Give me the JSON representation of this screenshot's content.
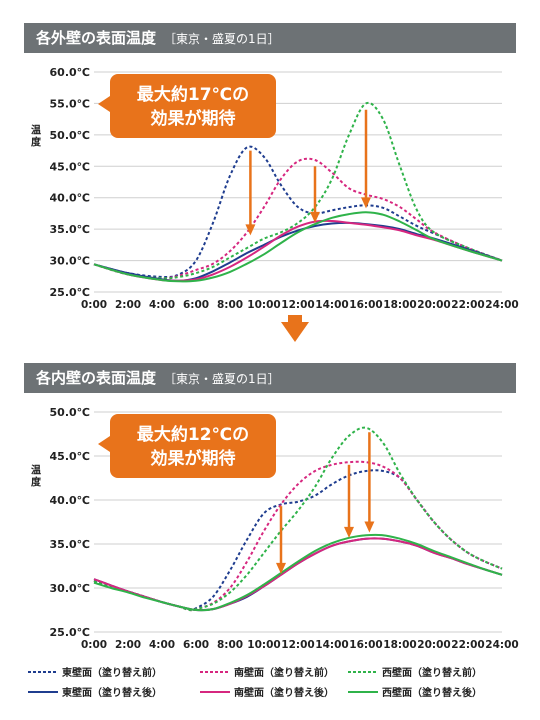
{
  "colors": {
    "east": "#1f3d8f",
    "south": "#d6277f",
    "west": "#2fb34a",
    "arrow": "#e8731b",
    "header_bg": "#6d7275",
    "grid": "#cfcfcf"
  },
  "flow_arrow_icon": "down-arrow-icon",
  "legend": {
    "east_before": "東壁面（塗り替え前）",
    "south_before": "南壁面（塗り替え前）",
    "west_before": "西壁面（塗り替え前）",
    "east_after": "東壁面（塗り替え後）",
    "south_after": "南壁面（塗り替え後）",
    "west_after": "西壁面（塗り替え後）"
  },
  "chart_data": [
    {
      "type": "line",
      "title": "各外壁の表面温度",
      "subtitle": "［東京・盛夏の1日］",
      "ylabel": "温度",
      "callout": [
        "最大約17℃の",
        "効果が期待"
      ],
      "x_ticks": [
        "0:00",
        "2:00",
        "4:00",
        "6:00",
        "8:00",
        "10:00",
        "12:00",
        "14:00",
        "16:00",
        "18:00",
        "20:00",
        "22:00",
        "24:00"
      ],
      "y_ticks": [
        "25.0℃",
        "30.0℃",
        "35.0℃",
        "40.0℃",
        "45.0℃",
        "50.0℃",
        "55.0℃",
        "60.0℃"
      ],
      "ylim": [
        25,
        60
      ],
      "xlim": [
        0,
        24
      ],
      "grid": true,
      "series": [
        {
          "name": "東壁面（塗り替え前）",
          "color": "east",
          "dashed": true,
          "x": [
            0,
            2,
            4,
            5,
            6,
            7,
            8,
            9,
            10,
            11,
            12,
            13,
            14,
            15,
            16,
            17,
            18,
            19,
            20,
            22,
            24
          ],
          "y": [
            29.4,
            28.0,
            27.4,
            27.8,
            30.0,
            36.0,
            43.5,
            48.0,
            46.5,
            42.0,
            38.5,
            37.5,
            38.0,
            38.5,
            38.8,
            38.4,
            37.0,
            35.5,
            34.3,
            32.0,
            30.0
          ]
        },
        {
          "name": "南壁面（塗り替え前）",
          "color": "south",
          "dashed": true,
          "x": [
            0,
            2,
            4,
            5,
            6,
            7,
            8,
            9,
            10,
            11,
            12,
            13,
            14,
            15,
            16,
            17,
            18,
            19,
            20,
            22,
            24
          ],
          "y": [
            29.4,
            27.8,
            27.2,
            27.6,
            28.5,
            29.5,
            31.5,
            34.5,
            38.5,
            43.0,
            45.8,
            46.0,
            44.0,
            41.5,
            40.5,
            39.8,
            38.5,
            36.5,
            34.5,
            32.0,
            30.0
          ]
        },
        {
          "name": "西壁面（塗り替え前）",
          "color": "west",
          "dashed": true,
          "x": [
            0,
            2,
            4,
            5,
            6,
            7,
            8,
            9,
            10,
            11,
            12,
            13,
            14,
            15,
            16,
            17,
            18,
            19,
            20,
            22,
            24
          ],
          "y": [
            29.4,
            27.8,
            27.2,
            27.4,
            28.0,
            29.0,
            30.5,
            32.0,
            33.5,
            34.5,
            36.0,
            38.5,
            43.0,
            50.0,
            55.0,
            52.5,
            45.0,
            38.0,
            34.5,
            32.0,
            30.0
          ]
        },
        {
          "name": "東壁面（塗り替え後）",
          "color": "east",
          "dashed": false,
          "x": [
            0,
            2,
            4,
            5,
            6,
            7,
            8,
            9,
            10,
            11,
            12,
            13,
            14,
            15,
            16,
            17,
            18,
            19,
            20,
            22,
            24
          ],
          "y": [
            29.4,
            28.0,
            27.0,
            26.8,
            27.2,
            28.3,
            29.7,
            31.2,
            32.5,
            33.8,
            34.8,
            35.5,
            35.9,
            36.0,
            35.8,
            35.5,
            35.0,
            34.2,
            33.5,
            31.8,
            30.0
          ]
        },
        {
          "name": "南壁面（塗り替え後）",
          "color": "south",
          "dashed": false,
          "x": [
            0,
            2,
            4,
            5,
            6,
            7,
            8,
            9,
            10,
            11,
            12,
            13,
            14,
            15,
            16,
            17,
            18,
            19,
            20,
            22,
            24
          ],
          "y": [
            29.4,
            27.8,
            26.9,
            26.8,
            27.0,
            27.8,
            29.0,
            30.5,
            32.2,
            34.0,
            35.4,
            36.2,
            36.3,
            36.0,
            35.7,
            35.3,
            34.8,
            34.0,
            33.3,
            31.6,
            30.0
          ]
        },
        {
          "name": "西壁面（塗り替え後）",
          "color": "west",
          "dashed": false,
          "x": [
            0,
            2,
            4,
            5,
            6,
            7,
            8,
            9,
            10,
            11,
            12,
            13,
            14,
            15,
            16,
            17,
            18,
            19,
            20,
            22,
            24
          ],
          "y": [
            29.4,
            27.8,
            26.9,
            26.7,
            26.8,
            27.3,
            28.2,
            29.5,
            31.0,
            32.8,
            34.5,
            35.8,
            36.8,
            37.4,
            37.7,
            37.3,
            36.2,
            34.8,
            33.4,
            31.6,
            30.0
          ]
        }
      ],
      "annotation_arrows": [
        {
          "x": 9.2,
          "y_from": 47.5,
          "y_to": 34.0
        },
        {
          "x": 13.0,
          "y_from": 45.0,
          "y_to": 36.0
        },
        {
          "x": 16.0,
          "y_from": 54.0,
          "y_to": 38.3
        }
      ]
    },
    {
      "type": "line",
      "title": "各内壁の表面温度",
      "subtitle": "［東京・盛夏の1日］",
      "ylabel": "温度",
      "callout": [
        "最大約12℃の",
        "効果が期待"
      ],
      "x_ticks": [
        "0:00",
        "2:00",
        "4:00",
        "6:00",
        "8:00",
        "10:00",
        "12:00",
        "14:00",
        "16:00",
        "18:00",
        "20:00",
        "22:00",
        "24:00"
      ],
      "y_ticks": [
        "25.0℃",
        "30.0℃",
        "35.0℃",
        "40.0℃",
        "45.0℃",
        "50.0℃"
      ],
      "ylim": [
        25,
        50
      ],
      "xlim": [
        0,
        24
      ],
      "grid": true,
      "series": [
        {
          "name": "東壁面（塗り替え前）",
          "color": "east",
          "dashed": true,
          "x": [
            0,
            1,
            2,
            3,
            4,
            5,
            5.6,
            6,
            7,
            8,
            9,
            10,
            11,
            12,
            13,
            14,
            15,
            16,
            17,
            18,
            19,
            20,
            21,
            22,
            23,
            24
          ],
          "y": [
            30.8,
            30.2,
            29.6,
            29.0,
            28.4,
            27.9,
            27.6,
            27.7,
            29.0,
            32.0,
            35.5,
            38.5,
            39.5,
            39.8,
            40.5,
            41.8,
            42.8,
            43.3,
            43.3,
            42.5,
            40.0,
            37.5,
            35.5,
            34.0,
            33.0,
            32.2
          ]
        },
        {
          "name": "南壁面（塗り替え前）",
          "color": "south",
          "dashed": true,
          "x": [
            0,
            1,
            2,
            3,
            4,
            5,
            5.6,
            6,
            7,
            8,
            9,
            10,
            11,
            12,
            13,
            14,
            15,
            16,
            17,
            18,
            19,
            20,
            21,
            22,
            23,
            24
          ],
          "y": [
            30.8,
            30.2,
            29.6,
            29.0,
            28.4,
            27.9,
            27.5,
            27.6,
            28.3,
            30.0,
            33.0,
            36.5,
            39.5,
            41.8,
            43.3,
            44.0,
            44.3,
            44.3,
            43.8,
            42.5,
            40.0,
            37.5,
            35.5,
            34.0,
            33.0,
            32.2
          ]
        },
        {
          "name": "西壁面（塗り替え前）",
          "color": "west",
          "dashed": true,
          "x": [
            0,
            1,
            2,
            3,
            4,
            5,
            5.6,
            6,
            7,
            8,
            9,
            10,
            11,
            12,
            13,
            14,
            15,
            16,
            17,
            18,
            19,
            20,
            21,
            22,
            23,
            24
          ],
          "y": [
            30.8,
            30.2,
            29.6,
            29.0,
            28.4,
            27.9,
            27.5,
            27.6,
            28.2,
            29.5,
            31.5,
            34.0,
            36.5,
            38.8,
            41.5,
            44.8,
            47.3,
            48.2,
            46.5,
            43.0,
            40.0,
            37.5,
            35.5,
            34.0,
            33.0,
            32.2
          ]
        },
        {
          "name": "東壁面（塗り替え後）",
          "color": "east",
          "dashed": false,
          "x": [
            0,
            1,
            2,
            3,
            4,
            5,
            6,
            7,
            8,
            9,
            10,
            11,
            12,
            13,
            14,
            15,
            16,
            17,
            18,
            19,
            20,
            21,
            22,
            23,
            24
          ],
          "y": [
            31.0,
            30.3,
            29.6,
            29.0,
            28.4,
            27.9,
            27.5,
            27.6,
            28.2,
            29.0,
            30.2,
            31.5,
            32.8,
            33.9,
            34.8,
            35.3,
            35.6,
            35.6,
            35.3,
            34.8,
            34.0,
            33.4,
            32.7,
            32.1,
            31.5
          ]
        },
        {
          "name": "南壁面（塗り替え後）",
          "color": "south",
          "dashed": false,
          "x": [
            0,
            1,
            2,
            3,
            4,
            5,
            6,
            7,
            8,
            9,
            10,
            11,
            12,
            13,
            14,
            15,
            16,
            17,
            18,
            19,
            20,
            21,
            22,
            23,
            24
          ],
          "y": [
            31.0,
            30.3,
            29.6,
            29.0,
            28.4,
            27.9,
            27.5,
            27.6,
            28.2,
            29.1,
            30.2,
            31.5,
            32.8,
            33.9,
            34.8,
            35.3,
            35.6,
            35.6,
            35.3,
            34.8,
            34.0,
            33.4,
            32.7,
            32.1,
            31.5
          ]
        },
        {
          "name": "西壁面（塗り替え後）",
          "color": "west",
          "dashed": false,
          "x": [
            0,
            1,
            2,
            3,
            4,
            5,
            6,
            7,
            8,
            9,
            10,
            11,
            12,
            13,
            14,
            15,
            16,
            17,
            18,
            19,
            20,
            21,
            22,
            23,
            24
          ],
          "y": [
            30.6,
            30.0,
            29.5,
            28.9,
            28.4,
            27.9,
            27.5,
            27.6,
            28.3,
            29.2,
            30.4,
            31.7,
            33.0,
            34.2,
            35.1,
            35.7,
            36.0,
            36.0,
            35.6,
            35.0,
            34.2,
            33.5,
            32.8,
            32.1,
            31.5
          ]
        }
      ],
      "annotation_arrows": [
        {
          "x": 11.0,
          "y_from": 39.3,
          "y_to": 31.6
        },
        {
          "x": 15.0,
          "y_from": 44.0,
          "y_to": 35.7
        },
        {
          "x": 16.2,
          "y_from": 47.7,
          "y_to": 36.3
        }
      ]
    }
  ]
}
